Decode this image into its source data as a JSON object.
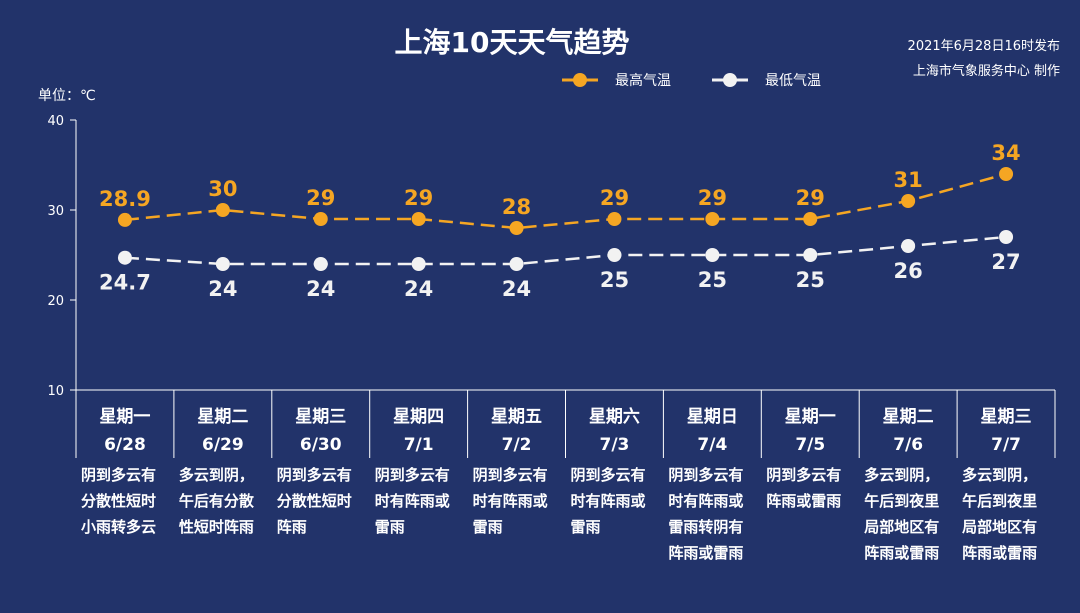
{
  "title": "上海10天天气趋势",
  "publish": {
    "time": "2021年6月28日16时发布",
    "org": "上海市气象服务中心 制作"
  },
  "unit": "单位：℃",
  "colors": {
    "background": "#22336a",
    "high": "#f5a623",
    "low": "#f2f2f2"
  },
  "chart_data": {
    "type": "line",
    "categories": [
      "6/28",
      "6/29",
      "6/30",
      "7/1",
      "7/2",
      "7/3",
      "7/4",
      "7/5",
      "7/6",
      "7/7"
    ],
    "weekdays": [
      "星期一",
      "星期二",
      "星期三",
      "星期四",
      "星期五",
      "星期六",
      "星期日",
      "星期一",
      "星期二",
      "星期三"
    ],
    "series": [
      {
        "name": "最高气温",
        "values": [
          28.9,
          30,
          29,
          29,
          28,
          29,
          29,
          29,
          31,
          34
        ],
        "labels": [
          "28.9",
          "30",
          "29",
          "29",
          "28",
          "29",
          "29",
          "29",
          "31",
          "34"
        ],
        "color": "#f5a623",
        "line_style": "dashed"
      },
      {
        "name": "最低气温",
        "values": [
          24.7,
          24,
          24,
          24,
          24,
          25,
          25,
          25,
          26,
          27
        ],
        "labels": [
          "24.7",
          "24",
          "24",
          "24",
          "24",
          "25",
          "25",
          "25",
          "26",
          "27"
        ],
        "color": "#f2f2f2",
        "line_style": "dashed"
      }
    ],
    "yticks": [
      "10",
      "20",
      "30",
      "40"
    ],
    "ylim": [
      10,
      40
    ],
    "ylabel": "单位：℃",
    "grid": false,
    "legend": "top-center",
    "weather": [
      [
        "阴到多云有",
        "分散性短时",
        "小雨转多云"
      ],
      [
        "多云到阴，",
        "午后有分散",
        "性短时阵雨"
      ],
      [
        "阴到多云有",
        "分散性短时",
        "阵雨"
      ],
      [
        "阴到多云有",
        "时有阵雨或",
        "雷雨"
      ],
      [
        "阴到多云有",
        "时有阵雨或",
        "雷雨"
      ],
      [
        "阴到多云有",
        "时有阵雨或",
        "雷雨"
      ],
      [
        "阴到多云有",
        "时有阵雨或",
        "雷雨转阴有",
        "阵雨或雷雨"
      ],
      [
        "阴到多云有",
        "阵雨或雷雨"
      ],
      [
        "多云到阴，",
        "午后到夜里",
        "局部地区有",
        "阵雨或雷雨"
      ],
      [
        "多云到阴，",
        "午后到夜里",
        "局部地区有",
        "阵雨或雷雨"
      ]
    ]
  }
}
